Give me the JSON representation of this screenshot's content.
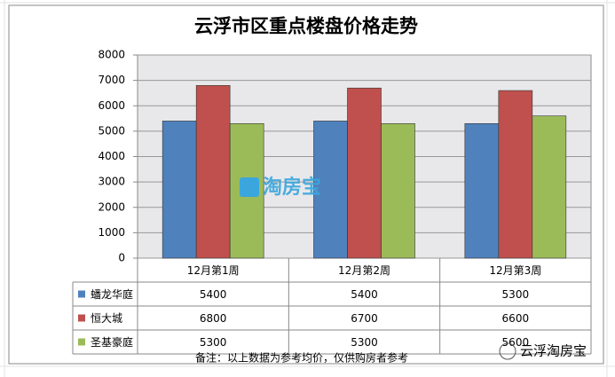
{
  "chart_data": {
    "type": "bar",
    "title": "云浮市区重点楼盘价格走势",
    "categories": [
      "12月第1周",
      "12月第2周",
      "12月第3周"
    ],
    "series": [
      {
        "name": "蟠龙华庭",
        "color": "#4f81bd",
        "values": [
          5400,
          5400,
          5300
        ]
      },
      {
        "name": "恒大城",
        "color": "#c0504d",
        "values": [
          6800,
          6700,
          6600
        ]
      },
      {
        "name": "圣基豪庭",
        "color": "#9bbb59",
        "values": [
          5300,
          5300,
          5600
        ]
      }
    ],
    "ylim": [
      0,
      8000
    ],
    "yticks": [
      0,
      1000,
      2000,
      3000,
      4000,
      5000,
      6000,
      7000,
      8000
    ],
    "grid": true,
    "watermark": "淘房宝",
    "note": "备注：以上数据为参考均价，仅供购房者参考",
    "brand": "云浮淘房宝"
  }
}
